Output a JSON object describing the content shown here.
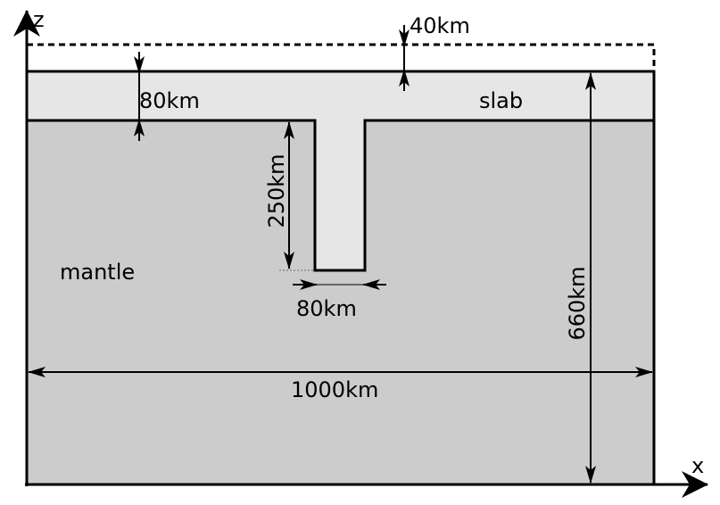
{
  "axes": {
    "x_label": "x",
    "z_label": "z"
  },
  "regions": {
    "slab_label": "slab",
    "mantle_label": "mantle"
  },
  "dimensions": {
    "free_surface_gap": "40km",
    "slab_thickness": "80km",
    "slab_depth": "250km",
    "slab_width": "80km",
    "domain_depth": "660km",
    "domain_width": "1000km"
  },
  "colors": {
    "mantle": "#cccccc",
    "slab": "#e6e6e6",
    "line": "#000000",
    "background": "#ffffff"
  }
}
